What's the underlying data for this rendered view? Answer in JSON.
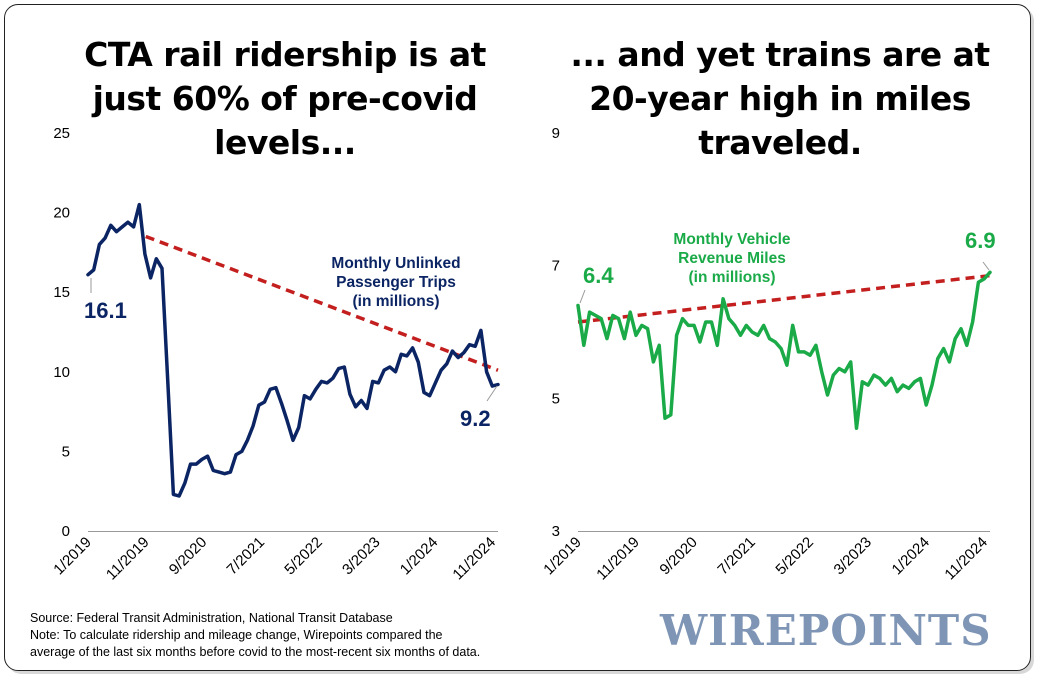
{
  "titles": {
    "left": "CTA rail ridership is at just 60% of pre-covid levels...",
    "right": "... and yet trains are at 20-year high in miles traveled."
  },
  "footer": {
    "source": "Source: Federal Transit Administration, National Transit Database",
    "note_line1": "Note: To calculate ridership and mileage change, Wirepoints compared the",
    "note_line2": "average of the last six months before covid to the most-recent six months of data."
  },
  "logo": "WIREPOINTS",
  "colors": {
    "navy": "#0b2463",
    "green": "#1aaa48",
    "trend": "#c41f1f",
    "axis": "#999999"
  },
  "chart_data": [
    {
      "type": "line",
      "series_label": [
        "Monthly Unlinked",
        "Passenger Trips",
        "(in millions)"
      ],
      "ylim": [
        0,
        25
      ],
      "yticks": [
        0,
        5,
        10,
        15,
        20,
        25
      ],
      "xticks": [
        "1/2019",
        "11/2019",
        "9/2020",
        "7/2021",
        "5/2022",
        "3/2023",
        "1/2024",
        "11/2024"
      ],
      "start_label": "16.1",
      "end_label": "9.2",
      "trend": {
        "from_month": "11/2019",
        "from_value": 18.5,
        "to_month": "12/2024",
        "to_value": 10.1
      },
      "values": [
        16.1,
        16.4,
        18.0,
        18.4,
        19.2,
        18.8,
        19.1,
        19.4,
        19.1,
        20.5,
        17.4,
        15.9,
        17.1,
        16.5,
        9.5,
        2.3,
        2.2,
        3.0,
        4.2,
        4.2,
        4.5,
        4.7,
        3.8,
        3.7,
        3.6,
        3.7,
        4.8,
        5.0,
        5.7,
        6.6,
        7.9,
        8.1,
        8.9,
        9.0,
        8.0,
        6.9,
        5.7,
        6.5,
        8.5,
        8.3,
        8.9,
        9.4,
        9.3,
        9.6,
        10.2,
        10.3,
        8.6,
        7.8,
        8.2,
        7.7,
        9.4,
        9.3,
        10.1,
        10.3,
        10.0,
        11.1,
        11.0,
        11.5,
        10.6,
        8.7,
        8.5,
        9.3,
        10.1,
        10.5,
        11.3,
        10.9,
        11.2,
        11.7,
        11.6,
        12.6,
        10.0,
        9.1,
        9.2
      ]
    },
    {
      "type": "line",
      "series_label": [
        "Monthly Vehicle",
        "Revenue Miles",
        "(in millions)"
      ],
      "ylim": [
        3,
        9
      ],
      "yticks": [
        3,
        5,
        7,
        9
      ],
      "xticks": [
        "1/2019",
        "11/2019",
        "9/2020",
        "7/2021",
        "5/2022",
        "3/2023",
        "1/2024",
        "11/2024"
      ],
      "start_label": "6.4",
      "end_label": "6.9",
      "trend": {
        "from_month": "1/2019",
        "from_value": 6.15,
        "to_month": "12/2024",
        "to_value": 6.85
      },
      "values": [
        6.4,
        5.8,
        6.3,
        6.25,
        6.2,
        5.9,
        6.25,
        6.2,
        5.9,
        6.3,
        5.95,
        6.1,
        6.05,
        5.55,
        5.8,
        4.7,
        4.75,
        5.95,
        6.2,
        6.1,
        6.1,
        5.85,
        6.15,
        6.15,
        5.8,
        6.5,
        6.2,
        6.1,
        5.95,
        6.1,
        6.0,
        5.95,
        6.1,
        5.9,
        5.85,
        5.75,
        5.5,
        6.1,
        5.7,
        5.7,
        5.65,
        5.8,
        5.4,
        5.05,
        5.35,
        5.45,
        5.4,
        5.55,
        4.55,
        5.25,
        5.2,
        5.35,
        5.3,
        5.2,
        5.3,
        5.1,
        5.2,
        5.15,
        5.25,
        5.3,
        4.9,
        5.2,
        5.6,
        5.75,
        5.55,
        5.9,
        6.05,
        5.8,
        6.15,
        6.75,
        6.8,
        6.9
      ]
    }
  ]
}
